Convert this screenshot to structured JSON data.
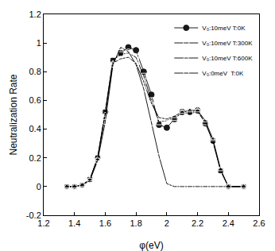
{
  "chart_data": {
    "type": "line",
    "x_label": "φ(eV)",
    "y_label": "Neutralization Rate",
    "x": [
      1.35,
      1.4,
      1.45,
      1.5,
      1.55,
      1.6,
      1.65,
      1.7,
      1.75,
      1.8,
      1.85,
      1.9,
      1.95,
      2.0,
      2.05,
      2.1,
      2.15,
      2.2,
      2.25,
      2.3,
      2.35,
      2.4,
      2.5
    ],
    "series": [
      {
        "name": "V₀:10meV T:0K",
        "color": "#000000",
        "marker": "circle",
        "line_style": "solid",
        "values": [
          0,
          0,
          0.01,
          0.05,
          0.2,
          0.52,
          0.88,
          0.93,
          0.97,
          0.95,
          0.8,
          0.64,
          0.43,
          0.41,
          0.47,
          0.52,
          0.52,
          0.53,
          0.44,
          0.32,
          0.11,
          0,
          0
        ]
      },
      {
        "name": "V₀:10meV T:300K",
        "color": "#000000",
        "marker": "square-open",
        "line_style": "solid",
        "values": [
          0,
          0,
          0.01,
          0.05,
          0.2,
          0.52,
          0.88,
          0.92,
          0.93,
          0.9,
          0.77,
          0.6,
          0.45,
          0.46,
          0.48,
          0.51,
          0.51,
          0.52,
          0.45,
          0.31,
          0.11,
          0,
          0
        ]
      },
      {
        "name": "V₀:10meV T:600K",
        "color": "#000000",
        "marker": "triangle-up-open",
        "line_style": "solid",
        "values": [
          0,
          0,
          0.01,
          0.05,
          0.19,
          0.5,
          0.86,
          0.89,
          0.9,
          0.86,
          0.73,
          0.58,
          0.48,
          0.47,
          0.49,
          0.52,
          0.53,
          0.53,
          0.46,
          0.33,
          0.12,
          0,
          0
        ]
      },
      {
        "name": "V₀:0meV  T:0K",
        "color": "#000000",
        "marker": "circle-open",
        "line_style": "solid",
        "values": [
          0,
          0,
          0.01,
          0.04,
          0.18,
          0.45,
          0.85,
          0.97,
          0.94,
          0.85,
          0.68,
          0.44,
          0.21,
          0.02,
          0,
          0,
          0,
          0,
          0,
          0,
          0,
          0,
          0
        ]
      }
    ],
    "xlim": [
      1.2,
      2.6
    ],
    "xticks": [
      1.2,
      1.4,
      1.6,
      1.8,
      2,
      2.2,
      2.4,
      2.6
    ],
    "ylim": [
      -0.2,
      1.2
    ],
    "yticks": [
      -0.2,
      0,
      0.2,
      0.4,
      0.6,
      0.8,
      1,
      1.2
    ],
    "grid": false,
    "legend": "top-right"
  }
}
